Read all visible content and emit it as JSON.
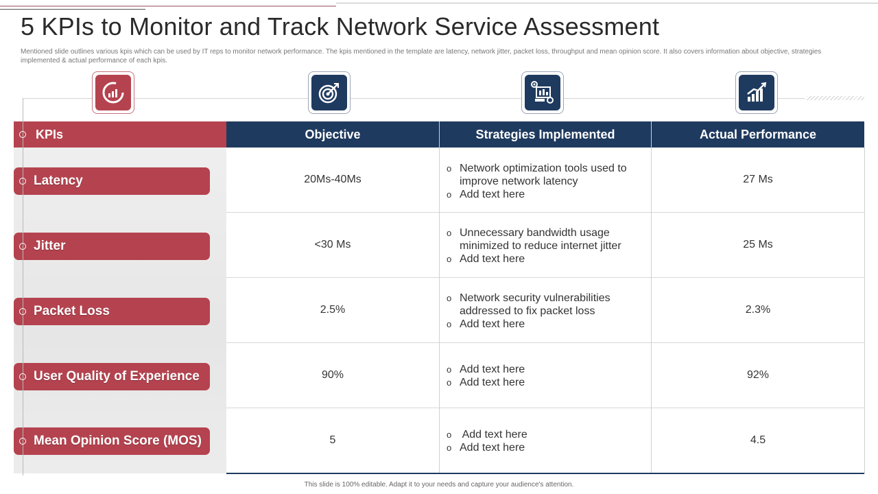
{
  "slide": {
    "title": "5 KPIs to Monitor and Track Network Service Assessment",
    "subtitle": "Mentioned slide outlines various kpis which can be used by IT reps to monitor network performance. The kpis mentioned in the template are latency, network jitter, packet loss, throughput and mean opinion score. It also covers information about objective, strategies implemented  & actual performance of each kpis.",
    "footer": "This slide is 100% editable. Adapt it to your needs and capture your audience's attention."
  },
  "colors": {
    "accent_red": "#b4434f",
    "navy": "#1f3a5f"
  },
  "icons": [
    "gauge-icon",
    "target-icon",
    "strategy-monitor-icon",
    "growth-chart-icon"
  ],
  "table": {
    "headers": {
      "kpis": "KPIs",
      "objective": "Objective",
      "strategies": "Strategies Implemented",
      "performance": "Actual Performance"
    },
    "rows": [
      {
        "kpi": "Latency",
        "objective": "20Ms-40Ms",
        "strategies": [
          "Network optimization tools used to improve network latency",
          "Add text here"
        ],
        "performance": "27 Ms"
      },
      {
        "kpi": "Jitter",
        "objective": "<30 Ms",
        "strategies": [
          "Unnecessary bandwidth usage minimized to reduce internet jitter",
          "Add text here"
        ],
        "performance": "25 Ms"
      },
      {
        "kpi": "Packet Loss",
        "objective": "2.5%",
        "strategies": [
          "Network security vulnerabilities addressed to fix packet loss",
          "Add text here"
        ],
        "performance": "2.3%"
      },
      {
        "kpi": "User Quality of Experience",
        "objective": "90%",
        "strategies": [
          "Add text here",
          "Add text here"
        ],
        "performance": "92%"
      },
      {
        "kpi": "Mean Opinion Score (MOS)",
        "objective": "5",
        "strategies": [
          " Add text here",
          "Add text here"
        ],
        "performance": "4.5"
      }
    ]
  }
}
